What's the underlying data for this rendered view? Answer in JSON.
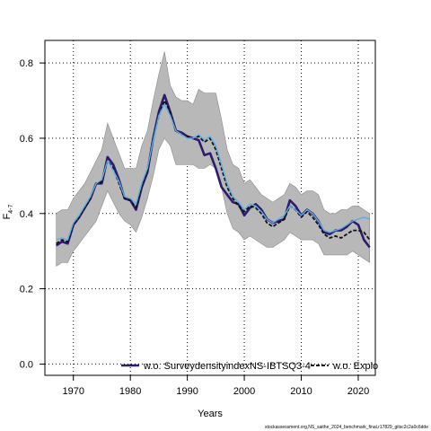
{
  "chart_data": {
    "type": "line",
    "title": "",
    "xlabel": "Years",
    "ylabel": "F",
    "ylabel_subscript": "4-7",
    "xlim": [
      1965,
      2023
    ],
    "ylim": [
      -0.03,
      0.86
    ],
    "xticks": [
      1970,
      1980,
      1990,
      2000,
      2010,
      2020
    ],
    "yticks": [
      0.0,
      0.2,
      0.4,
      0.6,
      0.8
    ],
    "grid": true,
    "legend_placement": "bottom",
    "x": [
      1967,
      1968,
      1969,
      1970,
      1971,
      1972,
      1973,
      1974,
      1975,
      1976,
      1977,
      1978,
      1979,
      1980,
      1981,
      1982,
      1983,
      1984,
      1985,
      1986,
      1987,
      1988,
      1989,
      1990,
      1991,
      1992,
      1993,
      1994,
      1995,
      1996,
      1997,
      1998,
      1999,
      2000,
      2001,
      2002,
      2003,
      2004,
      2005,
      2006,
      2007,
      2008,
      2009,
      2010,
      2011,
      2012,
      2013,
      2014,
      2015,
      2016,
      2017,
      2018,
      2019,
      2020,
      2021,
      2022
    ],
    "band": {
      "upper": [
        0.4,
        0.41,
        0.41,
        0.44,
        0.46,
        0.48,
        0.51,
        0.54,
        0.57,
        0.64,
        0.6,
        0.56,
        0.52,
        0.52,
        0.52,
        0.58,
        0.62,
        0.7,
        0.77,
        0.83,
        0.74,
        0.71,
        0.7,
        0.7,
        0.69,
        0.73,
        0.72,
        0.72,
        0.72,
        0.65,
        0.57,
        0.53,
        0.52,
        0.48,
        0.49,
        0.47,
        0.45,
        0.44,
        0.43,
        0.44,
        0.45,
        0.48,
        0.47,
        0.45,
        0.46,
        0.46,
        0.45,
        0.41,
        0.4,
        0.4,
        0.41,
        0.41,
        0.42,
        0.42,
        0.41,
        0.4
      ],
      "lower": [
        0.26,
        0.27,
        0.27,
        0.3,
        0.32,
        0.34,
        0.36,
        0.38,
        0.42,
        0.46,
        0.43,
        0.4,
        0.38,
        0.37,
        0.35,
        0.39,
        0.44,
        0.5,
        0.57,
        0.6,
        0.58,
        0.53,
        0.53,
        0.53,
        0.53,
        0.52,
        0.52,
        0.53,
        0.52,
        0.47,
        0.4,
        0.36,
        0.35,
        0.33,
        0.34,
        0.33,
        0.32,
        0.31,
        0.31,
        0.32,
        0.33,
        0.35,
        0.34,
        0.33,
        0.33,
        0.33,
        0.32,
        0.29,
        0.29,
        0.29,
        0.29,
        0.29,
        0.3,
        0.29,
        0.28,
        0.27
      ]
    },
    "series": [
      {
        "name": "w.o. SurveydensityindexNS-IBTSQ3-4",
        "color": "#2e1a6e",
        "values": [
          0.315,
          0.325,
          0.32,
          0.37,
          0.39,
          0.415,
          0.44,
          0.48,
          0.48,
          0.55,
          0.53,
          0.49,
          0.44,
          0.435,
          0.41,
          0.47,
          0.51,
          0.6,
          0.67,
          0.715,
          0.67,
          0.62,
          0.615,
          0.605,
          0.6,
          0.595,
          0.555,
          0.56,
          0.52,
          0.47,
          0.45,
          0.43,
          0.425,
          0.395,
          0.415,
          0.425,
          0.41,
          0.385,
          0.375,
          0.38,
          0.385,
          0.435,
          0.42,
          0.395,
          0.41,
          0.4,
          0.38,
          0.35,
          0.345,
          0.355,
          0.355,
          0.365,
          0.38,
          0.37,
          0.33,
          0.31
        ]
      },
      {
        "name": "w.o. Explo",
        "color": "#111111",
        "values": [
          0.32,
          0.33,
          0.325,
          0.37,
          0.39,
          0.415,
          0.44,
          0.48,
          0.485,
          0.54,
          0.52,
          0.48,
          0.44,
          0.435,
          0.415,
          0.475,
          0.515,
          0.6,
          0.66,
          0.7,
          0.67,
          0.62,
          0.61,
          0.605,
          0.6,
          0.605,
          0.59,
          0.6,
          0.57,
          0.52,
          0.47,
          0.44,
          0.42,
          0.405,
          0.42,
          0.415,
          0.4,
          0.375,
          0.365,
          0.375,
          0.385,
          0.42,
          0.41,
          0.39,
          0.405,
          0.39,
          0.37,
          0.345,
          0.335,
          0.34,
          0.335,
          0.345,
          0.355,
          0.355,
          0.35,
          0.33
        ]
      },
      {
        "name": "",
        "color": "#5aaee6",
        "values": [
          0.33,
          0.335,
          0.33,
          0.375,
          0.395,
          0.42,
          0.445,
          0.48,
          0.49,
          0.54,
          0.515,
          0.485,
          0.445,
          0.44,
          0.425,
          0.48,
          0.52,
          0.595,
          0.66,
          0.69,
          0.66,
          0.62,
          0.61,
          0.6,
          0.6,
          0.61,
          0.595,
          0.605,
          0.58,
          0.53,
          0.48,
          0.445,
          0.43,
          0.41,
          0.425,
          0.42,
          0.405,
          0.385,
          0.375,
          0.385,
          0.395,
          0.42,
          0.41,
          0.395,
          0.41,
          0.4,
          0.38,
          0.355,
          0.35,
          0.355,
          0.36,
          0.37,
          0.38,
          0.385,
          0.39,
          0.385
        ]
      }
    ]
  },
  "footer": "stockassessment.org,NS_saithe_2024_benchmark_final,r17829_gitsc2c2a0c6dde"
}
